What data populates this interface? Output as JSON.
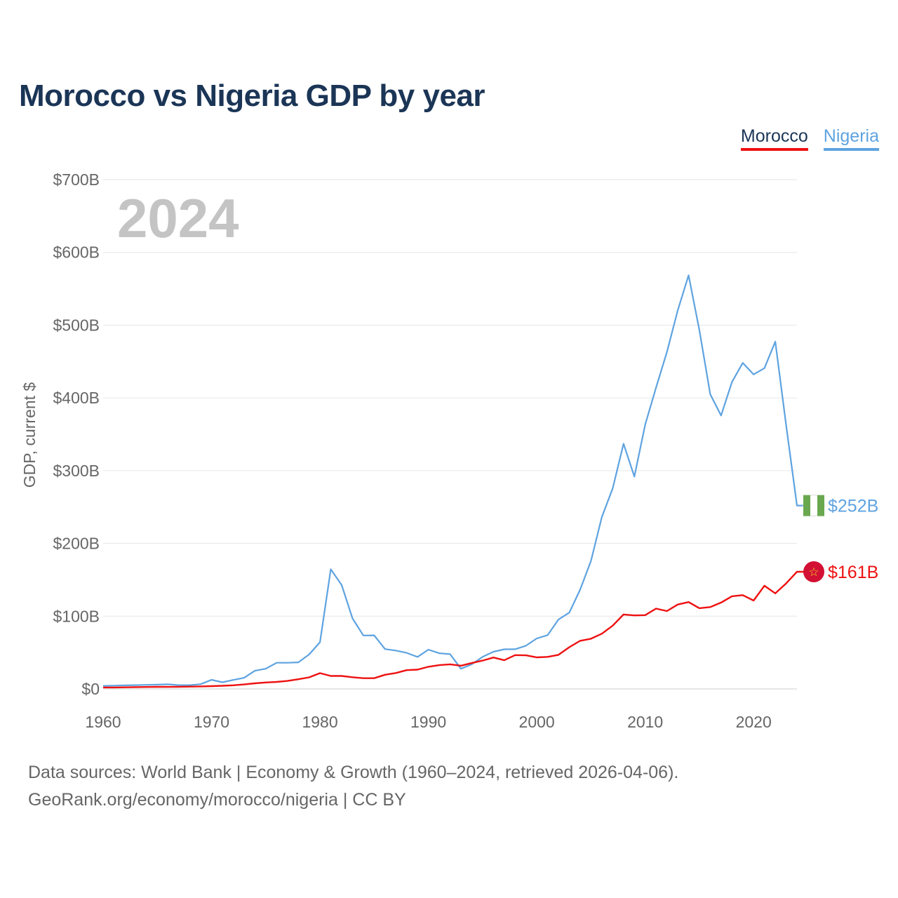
{
  "title": "Morocco vs Nigeria GDP by year",
  "legend": {
    "morocco": "Morocco",
    "nigeria": "Nigeria"
  },
  "watermark_year": "2024",
  "colors": {
    "morocco": "#ee1111",
    "nigeria": "#5ea3e0",
    "title": "#1b3556"
  },
  "footer": {
    "line1": "Data sources: World Bank | Economy & Growth (1960–2024, retrieved 2026-04-06).",
    "line2": "GeoRank.org/economy/morocco/nigeria | CC BY"
  },
  "chart_data": {
    "type": "line",
    "title": "Morocco vs Nigeria GDP by year",
    "xlabel": "",
    "ylabel": "GDP, current $",
    "xlim": [
      1960,
      2024
    ],
    "ylim": [
      0,
      700
    ],
    "xticks": [
      1960,
      1970,
      1980,
      1990,
      2000,
      2010,
      2020
    ],
    "yticks": [
      0,
      100,
      200,
      300,
      400,
      500,
      600,
      700
    ],
    "ytick_labels": [
      "$0",
      "$100B",
      "$200B",
      "$300B",
      "$400B",
      "$500B",
      "$600B",
      "$700B"
    ],
    "grid": true,
    "legend_position": "top-right",
    "x": [
      1960,
      1961,
      1962,
      1963,
      1964,
      1965,
      1966,
      1967,
      1968,
      1969,
      1970,
      1971,
      1972,
      1973,
      1974,
      1975,
      1976,
      1977,
      1978,
      1979,
      1980,
      1981,
      1982,
      1983,
      1984,
      1985,
      1986,
      1987,
      1988,
      1989,
      1990,
      1991,
      1992,
      1993,
      1994,
      1995,
      1996,
      1997,
      1998,
      1999,
      2000,
      2001,
      2002,
      2003,
      2004,
      2005,
      2006,
      2007,
      2008,
      2009,
      2010,
      2011,
      2012,
      2013,
      2014,
      2015,
      2016,
      2017,
      2018,
      2019,
      2020,
      2021,
      2022,
      2023,
      2024
    ],
    "series": [
      {
        "name": "Morocco",
        "end_label": "$161B",
        "values": [
          2.0,
          2.0,
          2.2,
          2.5,
          2.7,
          2.9,
          2.8,
          3.0,
          3.2,
          3.5,
          3.9,
          4.3,
          5.0,
          6.2,
          7.7,
          8.9,
          9.6,
          11.0,
          13.3,
          15.9,
          21.7,
          17.8,
          17.8,
          16.1,
          14.8,
          14.8,
          19.5,
          21.9,
          25.8,
          26.5,
          30.5,
          32.7,
          33.8,
          31.9,
          35.6,
          39.0,
          43.2,
          39.4,
          46.5,
          46.2,
          43.4,
          44.1,
          46.9,
          57.4,
          66.1,
          69.0,
          75.9,
          87.0,
          102.3,
          101.0,
          101.4,
          110.4,
          107.0,
          116.0,
          119.4,
          111.0,
          112.5,
          118.7,
          127.4,
          128.9,
          121.5,
          141.8,
          131.3,
          145.0,
          161.0
        ]
      },
      {
        "name": "Nigeria",
        "end_label": "$252B",
        "values": [
          4.2,
          4.5,
          4.9,
          5.2,
          5.6,
          5.9,
          6.4,
          5.2,
          5.2,
          6.6,
          12.5,
          9.2,
          12.3,
          15.2,
          25.0,
          27.8,
          36.0,
          36.0,
          36.5,
          47.3,
          64.2,
          164.5,
          142.8,
          97.1,
          73.5,
          73.7,
          54.8,
          52.7,
          49.6,
          44.0,
          54.0,
          49.1,
          47.8,
          27.8,
          33.8,
          44.1,
          51.1,
          54.5,
          54.6,
          59.4,
          69.4,
          74.0,
          95.4,
          104.9,
          136.4,
          176.1,
          236.1,
          275.6,
          337.0,
          291.9,
          363.4,
          414.0,
          463.0,
          520.1,
          568.5,
          493.0,
          405.0,
          375.7,
          421.7,
          448.1,
          432.2,
          440.8,
          477.4,
          362.8,
          252.0
        ]
      }
    ]
  }
}
